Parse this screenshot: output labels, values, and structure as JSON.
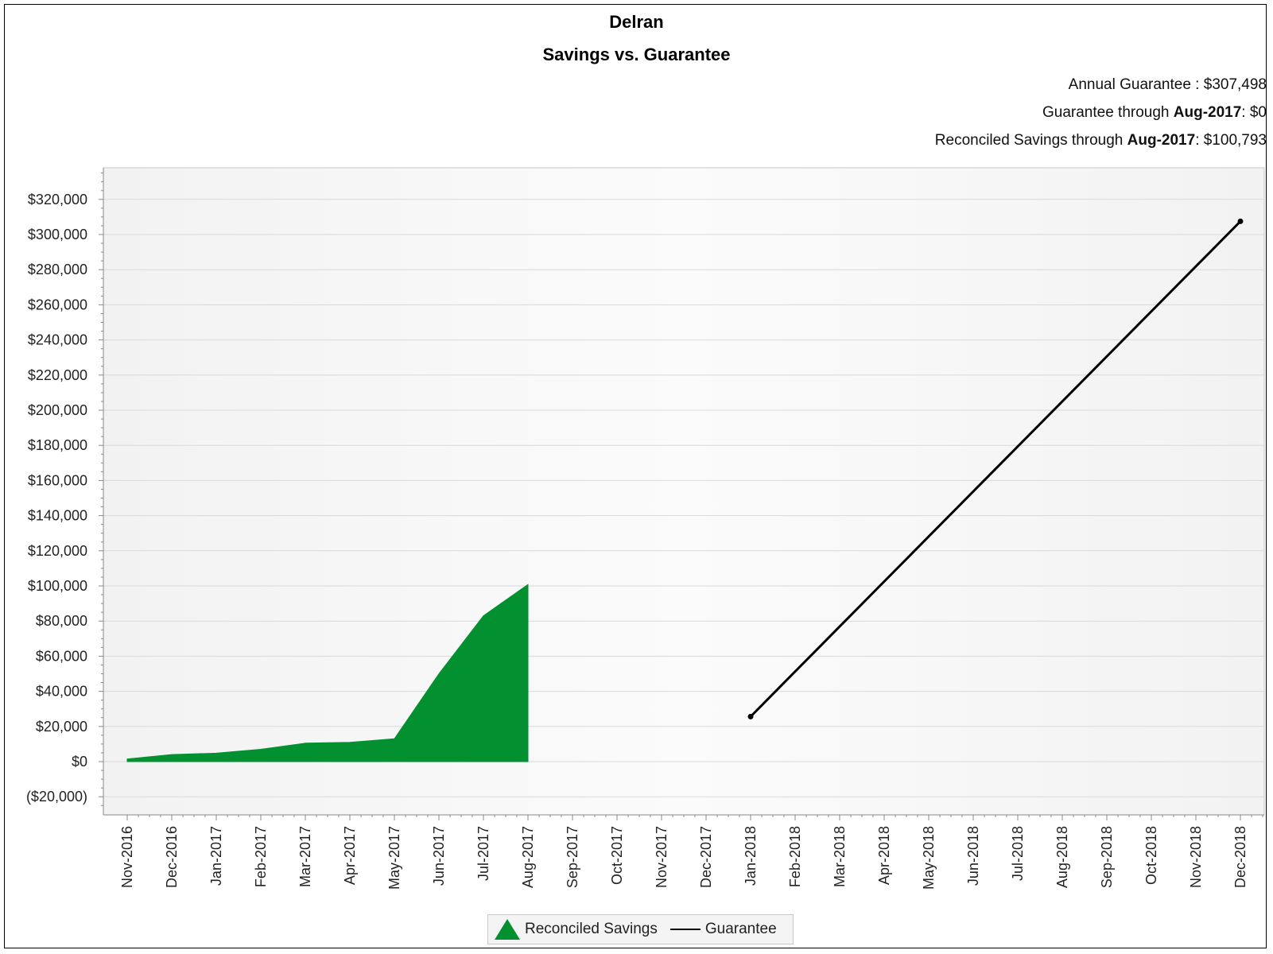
{
  "header": {
    "title": "Delran",
    "subtitle": "Savings vs. Guarantee"
  },
  "info": {
    "annual_label": "Annual Guarantee :",
    "annual_value": "$307,498",
    "guarantee_label": "Guarantee through",
    "guarantee_month": "Aug-2017",
    "guarantee_value": ": $0",
    "reconciled_label": "Reconciled Savings through",
    "reconciled_month": "Aug-2017",
    "reconciled_value": ": $100,793"
  },
  "legend": {
    "savings_label": "Reconciled Savings",
    "guarantee_label": "Guarantee"
  },
  "chart_data": {
    "type": "area",
    "categories": [
      "Nov-2016",
      "Dec-2016",
      "Jan-2017",
      "Feb-2017",
      "Mar-2017",
      "Apr-2017",
      "May-2017",
      "Jun-2017",
      "Jul-2017",
      "Aug-2017",
      "Sep-2017",
      "Oct-2017",
      "Nov-2017",
      "Dec-2017",
      "Jan-2018",
      "Feb-2018",
      "Mar-2018",
      "Apr-2018",
      "May-2018",
      "Jun-2018",
      "Jul-2018",
      "Aug-2018",
      "Sep-2018",
      "Oct-2018",
      "Nov-2018",
      "Dec-2018"
    ],
    "y_tick_labels": [
      "$320,000",
      "$300,000",
      "$280,000",
      "$260,000",
      "$240,000",
      "$220,000",
      "$200,000",
      "$180,000",
      "$160,000",
      "$140,000",
      "$120,000",
      "$100,000",
      "$80,000",
      "$60,000",
      "$40,000",
      "$20,000",
      "$0",
      "($20,000)"
    ],
    "y_ticks": [
      320000,
      300000,
      280000,
      260000,
      240000,
      220000,
      200000,
      180000,
      160000,
      140000,
      120000,
      100000,
      80000,
      60000,
      40000,
      20000,
      0,
      -20000
    ],
    "ylim": [
      -25000,
      340000
    ],
    "grid": true,
    "series": [
      {
        "name": "Reconciled Savings",
        "type": "area",
        "color": "#039030",
        "values": [
          1500,
          4000,
          4800,
          7000,
          10500,
          11000,
          13000,
          50000,
          83000,
          100793,
          null,
          null,
          null,
          null,
          null,
          null,
          null,
          null,
          null,
          null,
          null,
          null,
          null,
          null,
          null,
          null
        ]
      },
      {
        "name": "Guarantee",
        "type": "line",
        "color": "#000000",
        "values": [
          null,
          null,
          null,
          null,
          null,
          null,
          null,
          null,
          null,
          null,
          null,
          null,
          null,
          null,
          25625,
          51250,
          76875,
          102500,
          128125,
          153750,
          179374,
          204999,
          230624,
          256249,
          281874,
          307498
        ]
      }
    ]
  }
}
